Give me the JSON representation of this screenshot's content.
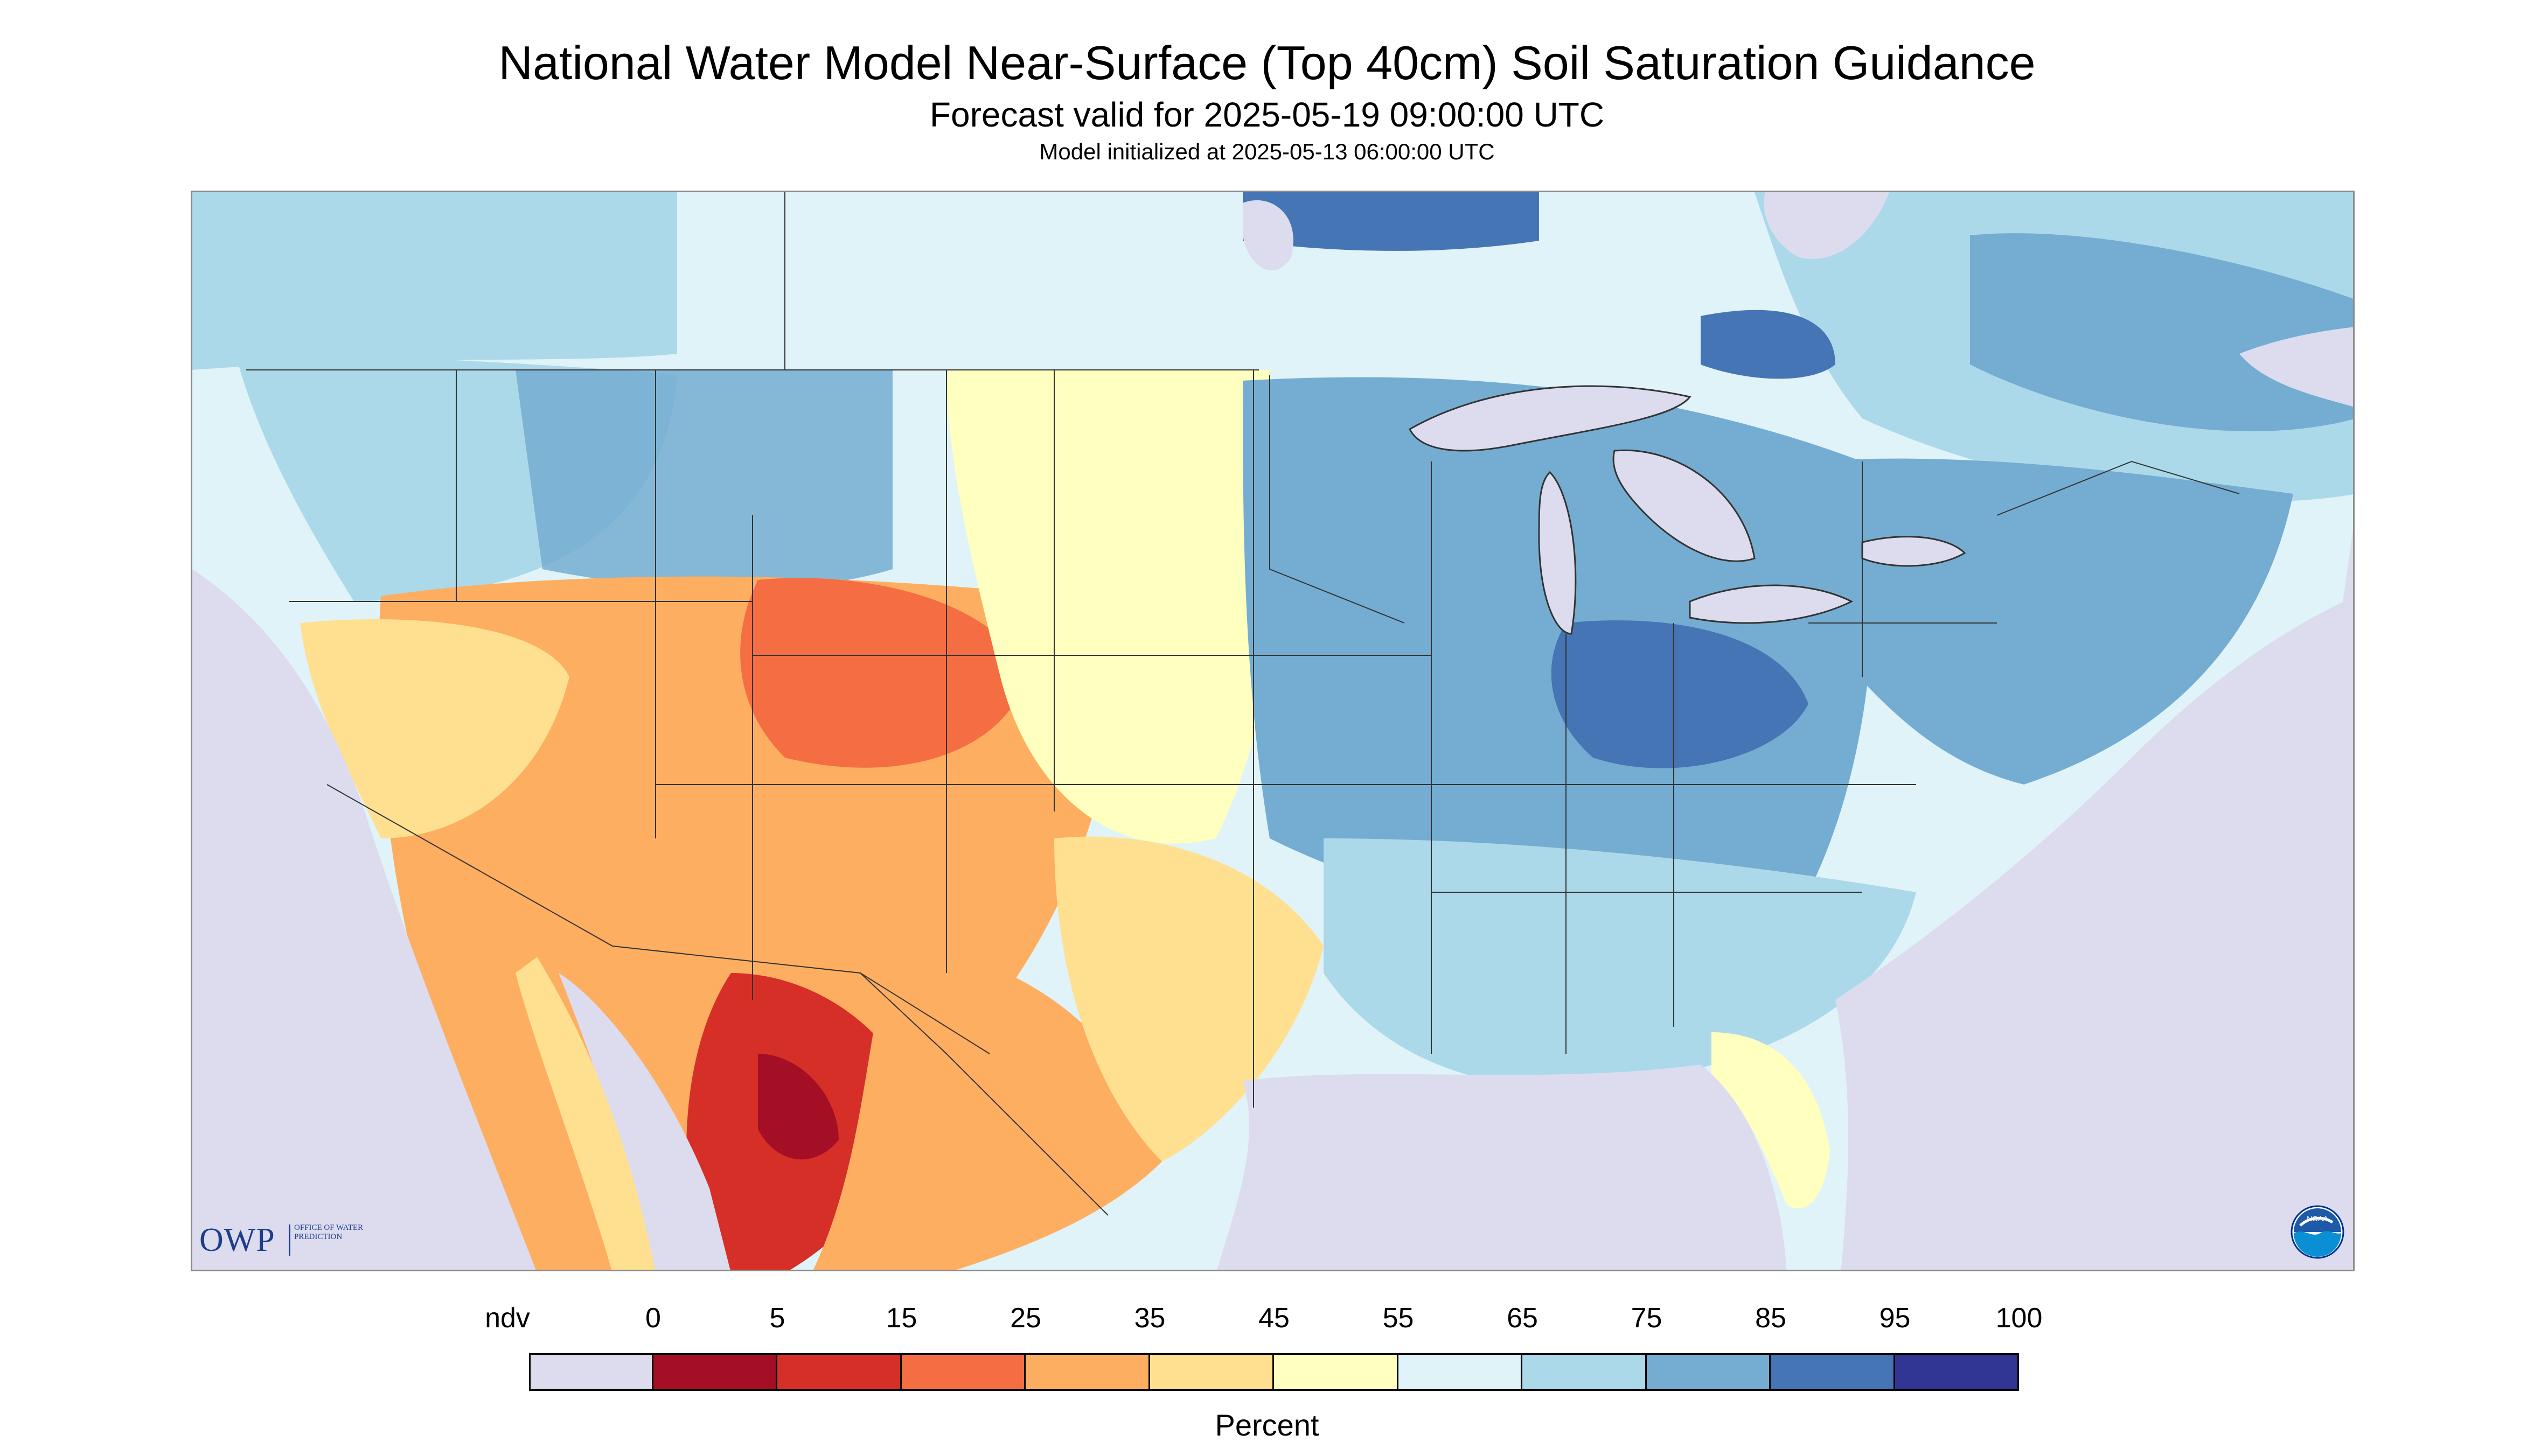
{
  "title": "National Water Model Near-Surface (Top 40cm) Soil Saturation Guidance",
  "subtitle": "Forecast valid for 2025-05-19 09:00:00 UTC",
  "init_line": "Model initialized at 2025-05-13 06:00:00 UTC",
  "logos": {
    "owp_main": "OWP",
    "owp_sub": "OFFICE OF WATER PREDICTION",
    "noaa": "NOAA"
  },
  "legend": {
    "unit": "Percent",
    "labels": [
      "ndv",
      "0",
      "5",
      "15",
      "25",
      "35",
      "45",
      "55",
      "65",
      "75",
      "85",
      "95",
      "100"
    ],
    "bins": [
      {
        "from": "ndv",
        "to": "0",
        "color": "#dcdcee"
      },
      {
        "from": "0",
        "to": "5",
        "color": "#a50f26"
      },
      {
        "from": "5",
        "to": "15",
        "color": "#d62f27"
      },
      {
        "from": "15",
        "to": "25",
        "color": "#f46d43"
      },
      {
        "from": "25",
        "to": "35",
        "color": "#fdae61"
      },
      {
        "from": "35",
        "to": "45",
        "color": "#fee090"
      },
      {
        "from": "45",
        "to": "55",
        "color": "#ffffbf"
      },
      {
        "from": "55",
        "to": "65",
        "color": "#e0f3f8"
      },
      {
        "from": "65",
        "to": "75",
        "color": "#abd9e9"
      },
      {
        "from": "75",
        "to": "85",
        "color": "#74add1"
      },
      {
        "from": "85",
        "to": "95",
        "color": "#4575b4"
      },
      {
        "from": "95",
        "to": "100",
        "color": "#313695"
      }
    ]
  },
  "colors": {
    "no_data": "#dcdcee",
    "water": "#dcdcee",
    "border_lines": "#333333"
  }
}
